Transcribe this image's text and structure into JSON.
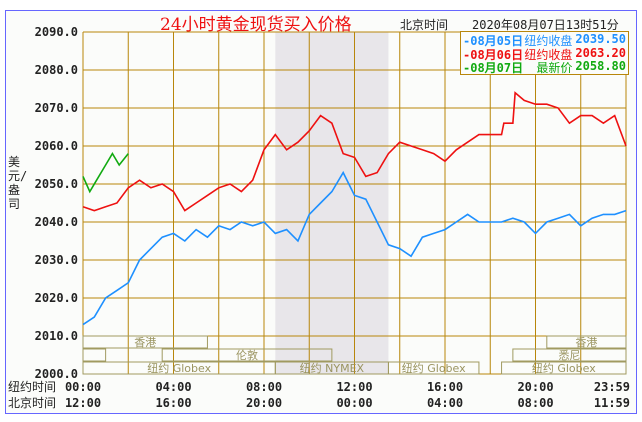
{
  "header": {
    "title": "24小时黄金现货买入价格",
    "tz_label": "北京时间",
    "datetime": "2020年08月07日13时51分"
  },
  "legend": [
    {
      "marker": "-08月05日",
      "label": "纽约收盘",
      "value": "2039.50",
      "color": "#1e90ff"
    },
    {
      "marker": "-08月06日",
      "label": "纽约收盘",
      "value": "2063.20",
      "color": "#ee1111"
    },
    {
      "marker": "-08月07日",
      "label": "最新价",
      "value": "2058.80",
      "color": "#11aa11"
    }
  ],
  "chart_data": {
    "type": "line",
    "title": "24小时黄金现货买入价格",
    "ylabel": "美元/盎司",
    "ylim": [
      2000,
      2090
    ],
    "xlim": [
      0,
      24
    ],
    "yticks": [
      "2090.0",
      "2080.0",
      "2070.0",
      "2060.0",
      "2050.0",
      "2040.0",
      "2030.0",
      "2020.0",
      "2010.0",
      "2000.0"
    ],
    "xaxis_rows": [
      {
        "label": "纽约时间",
        "ticks": [
          "00:00",
          "04:00",
          "08:00",
          "12:00",
          "16:00",
          "20:00",
          "23:59"
        ]
      },
      {
        "label": "北京时间",
        "ticks": [
          "12:00",
          "16:00",
          "20:00",
          "00:00",
          "04:00",
          "08:00",
          "11:59"
        ]
      }
    ],
    "sessions": [
      {
        "name": "香港",
        "row": 0,
        "start": 0,
        "end": 5.5
      },
      {
        "name": "香港",
        "row": 0,
        "start": 20.5,
        "end": 24
      },
      {
        "name": "",
        "row": 1,
        "start": 0,
        "end": 1
      },
      {
        "name": "伦敦",
        "row": 1,
        "start": 3.5,
        "end": 11
      },
      {
        "name": "悉尼",
        "row": 1,
        "start": 19,
        "end": 24
      },
      {
        "name": "纽约 Globex",
        "row": 2,
        "start": 0,
        "end": 8.5
      },
      {
        "name": "纽约 NYMEX",
        "row": 2,
        "start": 8.5,
        "end": 13.5
      },
      {
        "name": "纽约 Globex",
        "row": 2,
        "start": 13.5,
        "end": 17.5
      },
      {
        "name": "纽约 Globex",
        "row": 2,
        "start": 18.5,
        "end": 24
      }
    ],
    "shaded_range": [
      8.5,
      13.5
    ],
    "series": [
      {
        "name": "08月05日",
        "color": "#1e90ff",
        "points": [
          [
            0,
            2013
          ],
          [
            0.5,
            2015
          ],
          [
            1,
            2020
          ],
          [
            1.5,
            2022
          ],
          [
            2,
            2024
          ],
          [
            2.5,
            2030
          ],
          [
            3,
            2033
          ],
          [
            3.5,
            2036
          ],
          [
            4,
            2037
          ],
          [
            4.5,
            2035
          ],
          [
            5,
            2038
          ],
          [
            5.5,
            2036
          ],
          [
            6,
            2039
          ],
          [
            6.5,
            2038
          ],
          [
            7,
            2040
          ],
          [
            7.5,
            2039
          ],
          [
            8,
            2040
          ],
          [
            8.5,
            2037
          ],
          [
            9,
            2038
          ],
          [
            9.5,
            2035
          ],
          [
            10,
            2042
          ],
          [
            10.5,
            2045
          ],
          [
            11,
            2048
          ],
          [
            11.5,
            2053
          ],
          [
            12,
            2047
          ],
          [
            12.5,
            2046
          ],
          [
            13,
            2040
          ],
          [
            13.5,
            2034
          ],
          [
            14,
            2033
          ],
          [
            14.5,
            2031
          ],
          [
            15,
            2036
          ],
          [
            15.5,
            2037
          ],
          [
            16,
            2038
          ],
          [
            16.5,
            2040
          ],
          [
            17,
            2042
          ],
          [
            17.5,
            2040
          ],
          [
            18,
            2040
          ],
          [
            18.5,
            2040
          ],
          [
            19,
            2041
          ],
          [
            19.5,
            2040
          ],
          [
            20,
            2037
          ],
          [
            20.5,
            2040
          ],
          [
            21,
            2041
          ],
          [
            21.5,
            2042
          ],
          [
            22,
            2039
          ],
          [
            22.5,
            2041
          ],
          [
            23,
            2042
          ],
          [
            23.5,
            2042
          ],
          [
            24,
            2043
          ]
        ]
      },
      {
        "name": "08月06日",
        "color": "#ee1111",
        "points": [
          [
            0,
            2044
          ],
          [
            0.5,
            2043
          ],
          [
            1,
            2044
          ],
          [
            1.5,
            2045
          ],
          [
            2,
            2049
          ],
          [
            2.5,
            2051
          ],
          [
            3,
            2049
          ],
          [
            3.5,
            2050
          ],
          [
            4,
            2048
          ],
          [
            4.5,
            2043
          ],
          [
            5,
            2045
          ],
          [
            5.5,
            2047
          ],
          [
            6,
            2049
          ],
          [
            6.5,
            2050
          ],
          [
            7,
            2048
          ],
          [
            7.5,
            2051
          ],
          [
            8,
            2059
          ],
          [
            8.5,
            2063
          ],
          [
            9,
            2059
          ],
          [
            9.5,
            2061
          ],
          [
            10,
            2064
          ],
          [
            10.5,
            2068
          ],
          [
            11,
            2066
          ],
          [
            11.5,
            2058
          ],
          [
            12,
            2057
          ],
          [
            12.5,
            2052
          ],
          [
            13,
            2053
          ],
          [
            13.5,
            2058
          ],
          [
            14,
            2061
          ],
          [
            14.5,
            2060
          ],
          [
            15,
            2059
          ],
          [
            15.5,
            2058
          ],
          [
            16,
            2056
          ],
          [
            16.5,
            2059
          ],
          [
            17,
            2061
          ],
          [
            17.5,
            2063
          ],
          [
            18,
            2063
          ],
          [
            18.5,
            2063
          ],
          [
            18.6,
            2066
          ],
          [
            19,
            2066
          ],
          [
            19.1,
            2074
          ],
          [
            19.5,
            2072
          ],
          [
            20,
            2071
          ],
          [
            20.5,
            2071
          ],
          [
            21,
            2070
          ],
          [
            21.5,
            2066
          ],
          [
            22,
            2068
          ],
          [
            22.5,
            2068
          ],
          [
            23,
            2066
          ],
          [
            23.5,
            2068
          ],
          [
            24,
            2060
          ]
        ]
      },
      {
        "name": "08月07日",
        "color": "#11aa11",
        "points": [
          [
            0,
            2052
          ],
          [
            0.3,
            2048
          ],
          [
            0.6,
            2051
          ],
          [
            1,
            2055
          ],
          [
            1.3,
            2058
          ],
          [
            1.6,
            2055
          ],
          [
            2,
            2058
          ]
        ]
      }
    ]
  }
}
